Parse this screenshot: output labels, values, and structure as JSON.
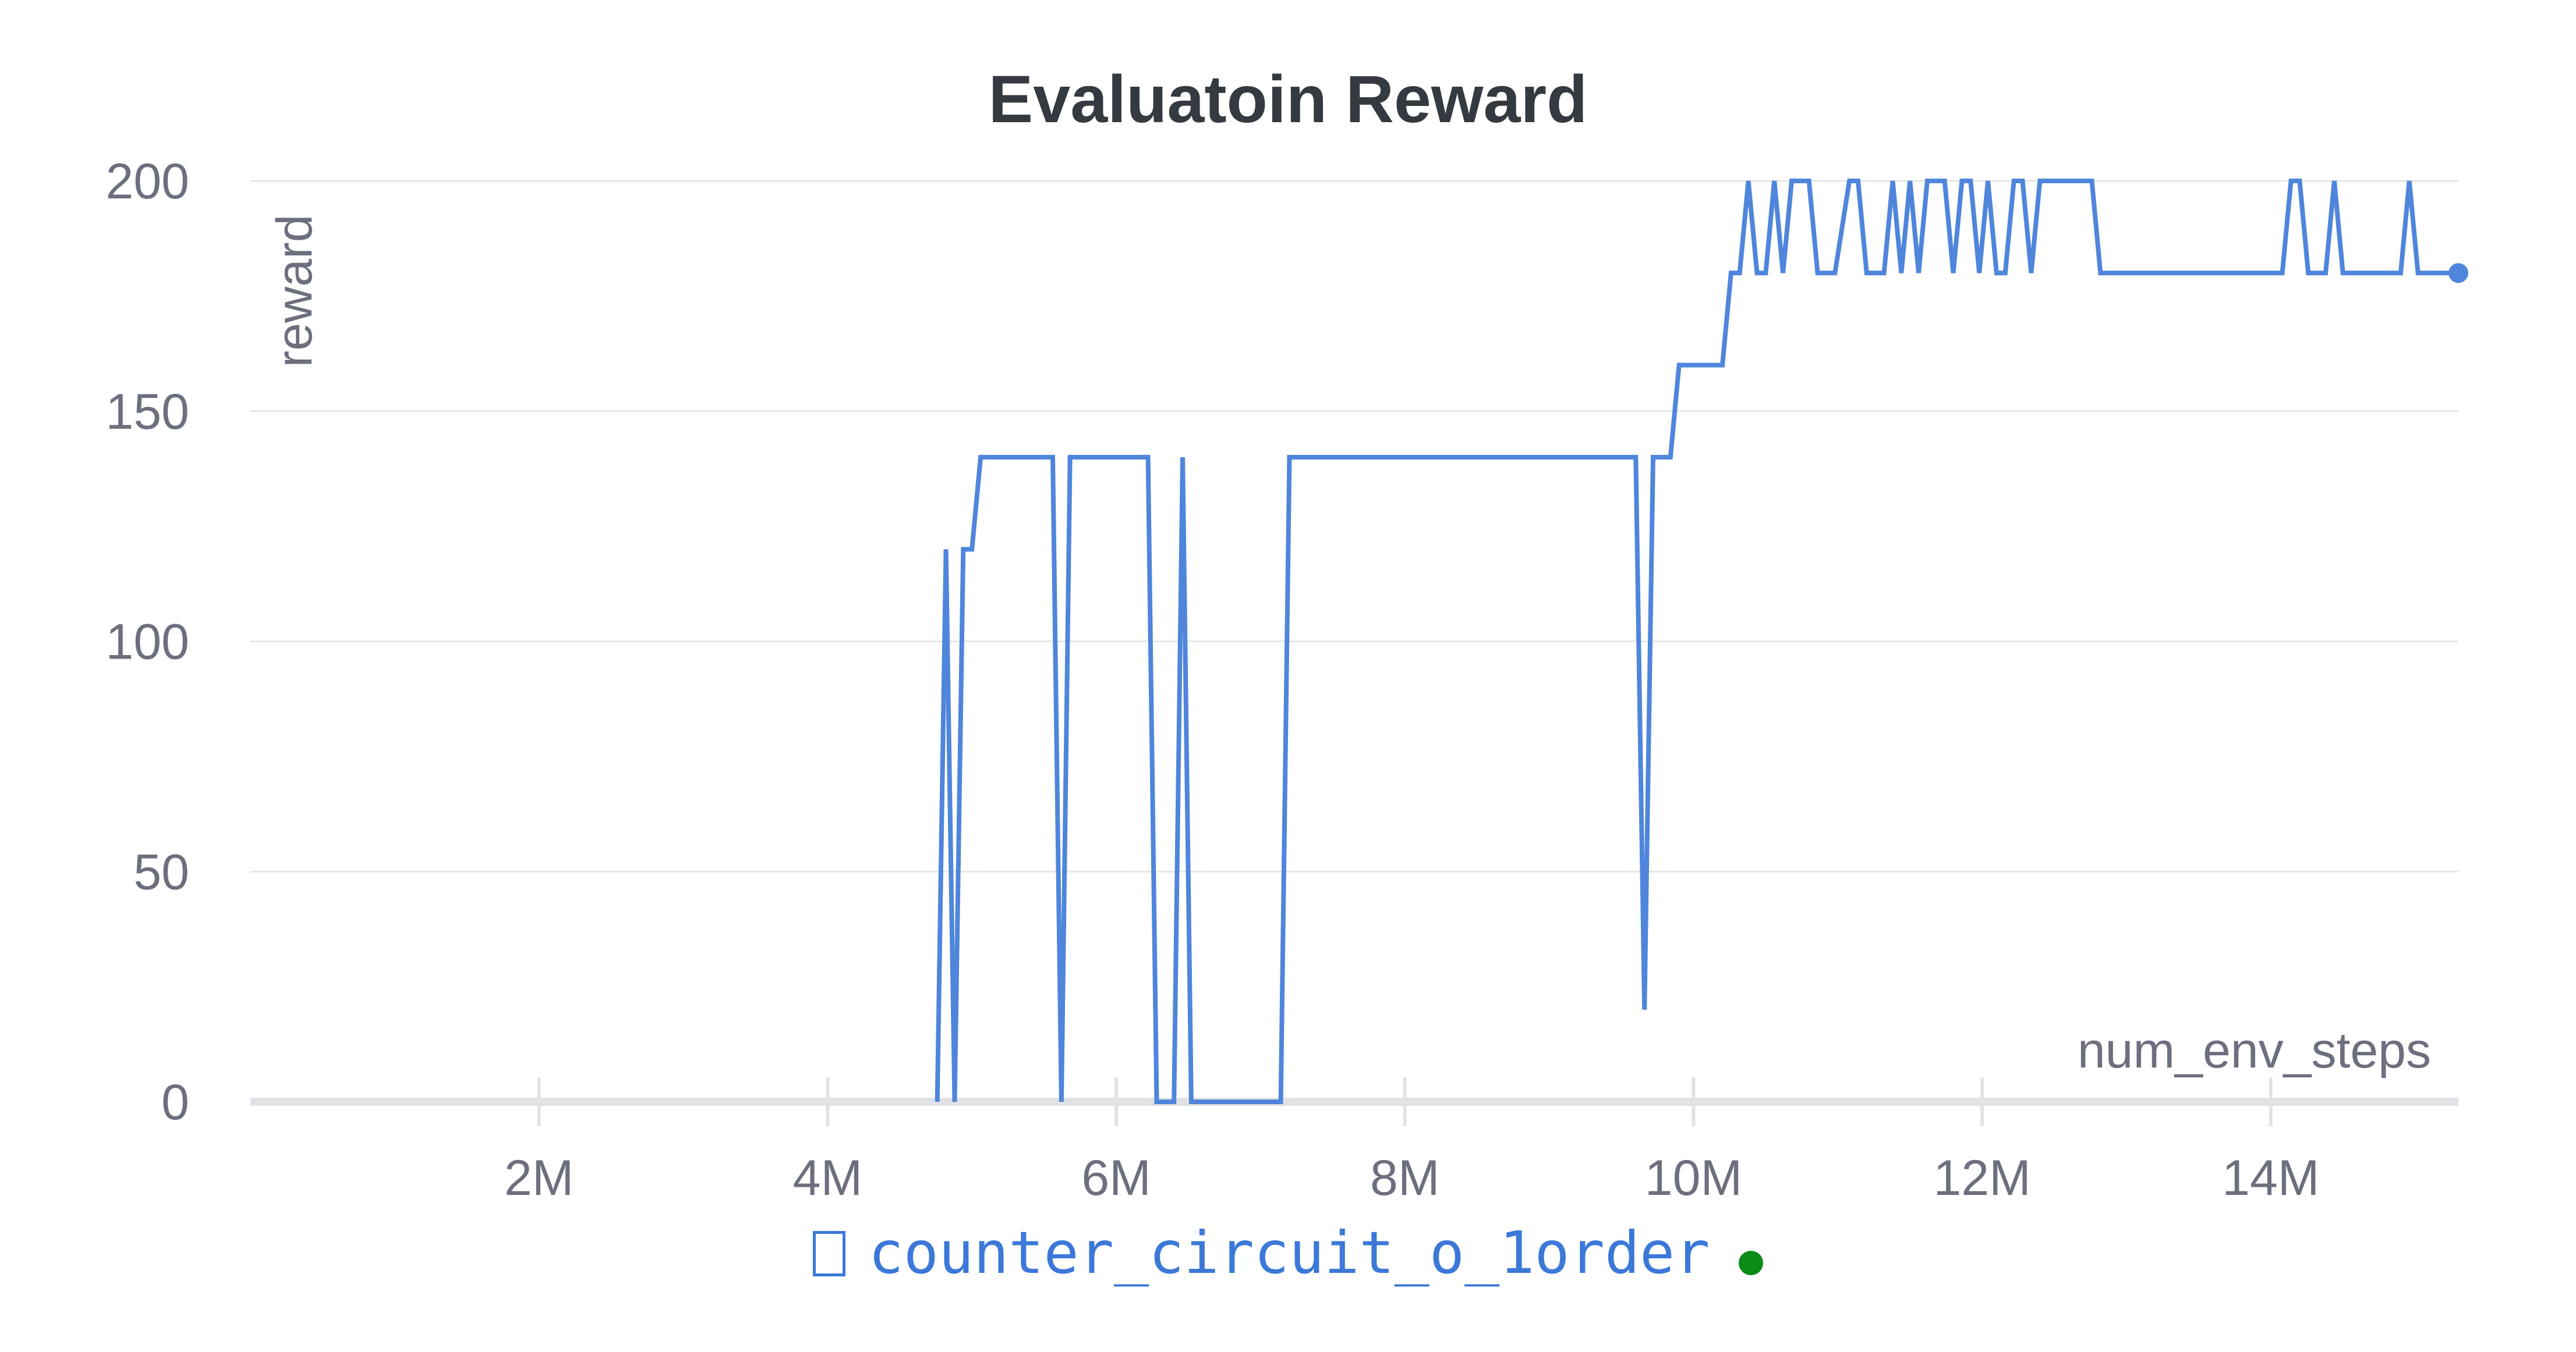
{
  "chart_data": {
    "type": "line",
    "title": "Evaluatoin Reward",
    "xlabel": "num_env_steps",
    "ylabel": "reward",
    "xlim": [
      0,
      15300000
    ],
    "ylim": [
      0,
      200
    ],
    "xticks": [
      {
        "value": 2000000,
        "label": "2M"
      },
      {
        "value": 4000000,
        "label": "4M"
      },
      {
        "value": 6000000,
        "label": "6M"
      },
      {
        "value": 8000000,
        "label": "8M"
      },
      {
        "value": 10000000,
        "label": "10M"
      },
      {
        "value": 12000000,
        "label": "12M"
      },
      {
        "value": 14000000,
        "label": "14M"
      }
    ],
    "yticks": [
      {
        "value": 0,
        "label": "0"
      },
      {
        "value": 50,
        "label": "50"
      },
      {
        "value": 100,
        "label": "100"
      },
      {
        "value": 150,
        "label": "150"
      },
      {
        "value": 200,
        "label": "200"
      }
    ],
    "grid": true,
    "legend_position": "bottom-center",
    "series": [
      {
        "name": "counter_circuit_o_1order",
        "color": "#4f86db",
        "x": [
          4760000,
          4820000,
          4880000,
          4940000,
          5000000,
          5060000,
          5560000,
          5620000,
          5680000,
          6220000,
          6280000,
          6400000,
          6460000,
          6520000,
          7140000,
          7200000,
          9600000,
          9660000,
          9720000,
          9780000,
          9840000,
          9900000,
          10200000,
          10260000,
          10320000,
          10380000,
          10440000,
          10500000,
          10560000,
          10620000,
          10680000,
          10740000,
          10800000,
          10860000,
          10920000,
          10980000,
          11080000,
          11140000,
          11200000,
          11260000,
          11320000,
          11380000,
          11440000,
          11500000,
          11560000,
          11620000,
          11680000,
          11740000,
          11800000,
          11860000,
          11920000,
          11980000,
          12040000,
          12100000,
          12160000,
          12220000,
          12280000,
          12340000,
          12400000,
          12460000,
          12520000,
          12580000,
          12640000,
          12700000,
          12760000,
          12820000,
          14080000,
          14140000,
          14200000,
          14260000,
          14320000,
          14380000,
          14440000,
          14500000,
          14560000,
          14620000,
          14840000,
          14900000,
          14960000,
          15020000,
          15300000
        ],
        "values": [
          0,
          120,
          0,
          120,
          120,
          140,
          140,
          0,
          140,
          140,
          0,
          0,
          140,
          0,
          0,
          140,
          140,
          20,
          140,
          140,
          140,
          160,
          160,
          180,
          180,
          200,
          180,
          180,
          200,
          180,
          200,
          200,
          200,
          180,
          180,
          180,
          200,
          200,
          180,
          180,
          180,
          200,
          180,
          200,
          180,
          200,
          200,
          200,
          180,
          200,
          200,
          180,
          200,
          180,
          180,
          200,
          200,
          180,
          200,
          200,
          200,
          200,
          200,
          200,
          200,
          180,
          180,
          200,
          200,
          180,
          180,
          180,
          200,
          180,
          180,
          180,
          180,
          180,
          200,
          180,
          180
        ]
      }
    ]
  }
}
